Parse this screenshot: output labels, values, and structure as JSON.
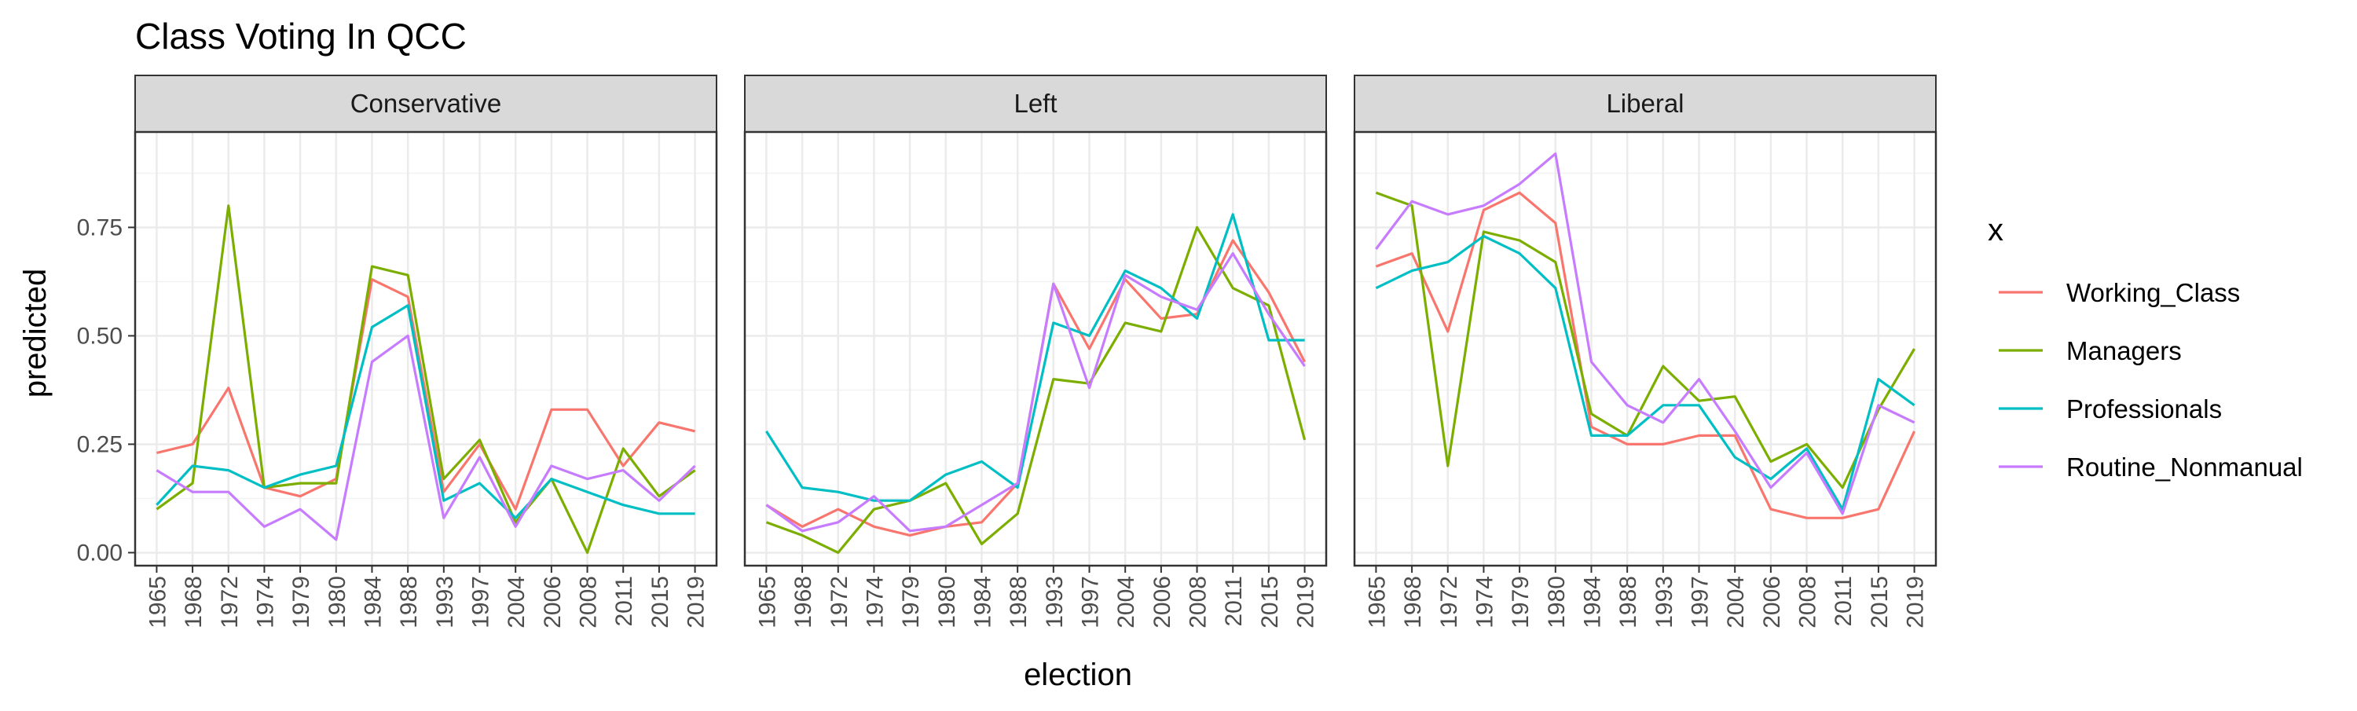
{
  "chart_data": {
    "type": "line",
    "title": "Class Voting In QCC",
    "xlabel": "election",
    "ylabel": "predicted",
    "x": [
      "1965",
      "1968",
      "1972",
      "1974",
      "1979",
      "1980",
      "1984",
      "1988",
      "1993",
      "1997",
      "2004",
      "2006",
      "2008",
      "2011",
      "2015",
      "2019"
    ],
    "ylim": [
      -0.03,
      0.97
    ],
    "yticks": [
      0.0,
      0.25,
      0.5,
      0.75
    ],
    "ytick_labels": [
      "0.00",
      "0.25",
      "0.50",
      "0.75"
    ],
    "grid": true,
    "legend": {
      "title": "x",
      "placement": "right",
      "entries": [
        "Working_Class",
        "Managers",
        "Professionals",
        "Routine_Nonmanual"
      ]
    },
    "colors": {
      "Working_Class": "#F8766D",
      "Managers": "#7CAE00",
      "Professionals": "#00BFC4",
      "Routine_Nonmanual": "#C77CFF"
    },
    "facets": [
      {
        "label": "Conservative",
        "series": [
          {
            "name": "Working_Class",
            "values": [
              0.23,
              0.25,
              0.38,
              0.15,
              0.13,
              0.17,
              0.63,
              0.59,
              0.14,
              0.25,
              0.1,
              0.33,
              0.33,
              0.2,
              0.3,
              0.28
            ]
          },
          {
            "name": "Managers",
            "values": [
              0.1,
              0.16,
              0.8,
              0.15,
              0.16,
              0.16,
              0.66,
              0.64,
              0.17,
              0.26,
              0.07,
              0.17,
              0.0,
              0.24,
              0.13,
              0.19
            ]
          },
          {
            "name": "Professionals",
            "values": [
              0.11,
              0.2,
              0.19,
              0.15,
              0.18,
              0.2,
              0.52,
              0.57,
              0.12,
              0.16,
              0.08,
              0.17,
              0.14,
              0.11,
              0.09,
              0.09
            ]
          },
          {
            "name": "Routine_Nonmanual",
            "values": [
              0.19,
              0.14,
              0.14,
              0.06,
              0.1,
              0.03,
              0.44,
              0.5,
              0.08,
              0.22,
              0.06,
              0.2,
              0.17,
              0.19,
              0.12,
              0.2
            ]
          }
        ]
      },
      {
        "label": "Left",
        "series": [
          {
            "name": "Working_Class",
            "values": [
              0.11,
              0.06,
              0.1,
              0.06,
              0.04,
              0.06,
              0.07,
              0.16,
              0.62,
              0.47,
              0.63,
              0.54,
              0.55,
              0.72,
              0.6,
              0.44
            ]
          },
          {
            "name": "Managers",
            "values": [
              0.07,
              0.04,
              0.0,
              0.1,
              0.12,
              0.16,
              0.02,
              0.09,
              0.4,
              0.39,
              0.53,
              0.51,
              0.75,
              0.61,
              0.57,
              0.26
            ]
          },
          {
            "name": "Professionals",
            "values": [
              0.28,
              0.15,
              0.14,
              0.12,
              0.12,
              0.18,
              0.21,
              0.15,
              0.53,
              0.5,
              0.65,
              0.61,
              0.54,
              0.78,
              0.49,
              0.49
            ]
          },
          {
            "name": "Routine_Nonmanual",
            "values": [
              0.11,
              0.05,
              0.07,
              0.13,
              0.05,
              0.06,
              0.11,
              0.16,
              0.62,
              0.38,
              0.64,
              0.59,
              0.56,
              0.69,
              0.55,
              0.43
            ]
          }
        ]
      },
      {
        "label": "Liberal",
        "series": [
          {
            "name": "Working_Class",
            "values": [
              0.66,
              0.69,
              0.51,
              0.79,
              0.83,
              0.76,
              0.29,
              0.25,
              0.25,
              0.27,
              0.27,
              0.1,
              0.08,
              0.08,
              0.1,
              0.28
            ]
          },
          {
            "name": "Managers",
            "values": [
              0.83,
              0.8,
              0.2,
              0.74,
              0.72,
              0.67,
              0.32,
              0.27,
              0.43,
              0.35,
              0.36,
              0.21,
              0.25,
              0.15,
              0.33,
              0.47
            ]
          },
          {
            "name": "Professionals",
            "values": [
              0.61,
              0.65,
              0.67,
              0.73,
              0.69,
              0.61,
              0.27,
              0.27,
              0.34,
              0.34,
              0.22,
              0.17,
              0.24,
              0.1,
              0.4,
              0.34
            ]
          },
          {
            "name": "Routine_Nonmanual",
            "values": [
              0.7,
              0.81,
              0.78,
              0.8,
              0.85,
              0.92,
              0.44,
              0.34,
              0.3,
              0.4,
              0.28,
              0.15,
              0.23,
              0.09,
              0.34,
              0.3
            ]
          }
        ]
      }
    ]
  }
}
